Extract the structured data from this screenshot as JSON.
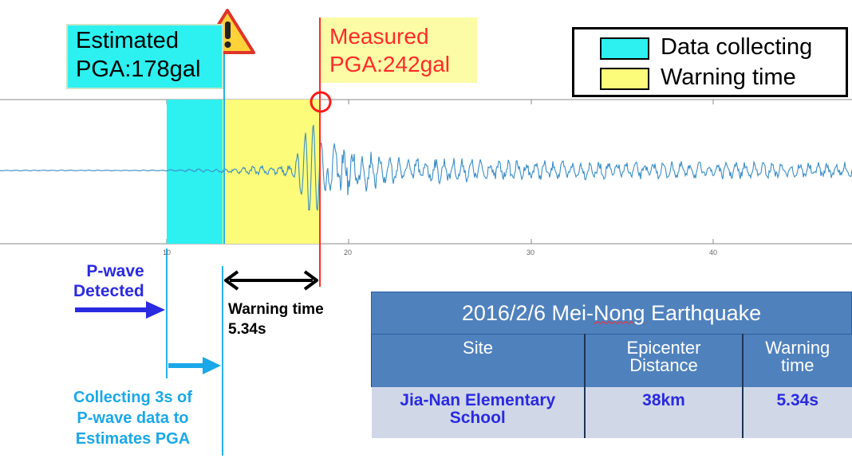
{
  "estimated": {
    "line1": "Estimated",
    "line2": "PGA:178gal"
  },
  "measured": {
    "line1": "Measured",
    "line2": "PGA:242gal"
  },
  "legend": [
    {
      "label": "Data collecting",
      "color": "#2df0f0"
    },
    {
      "label": "Warning time",
      "color": "#fdfc7a"
    }
  ],
  "axis_ticks": [
    "10",
    "20",
    "30",
    "40"
  ],
  "annotations": {
    "pwave_detected": "P-wave\nDetected",
    "warning_time": "Warning time\n5.34s",
    "collecting": "Collecting 3s of\nP-wave data to\nEstimates PGA"
  },
  "table": {
    "title_pre": "2016/2/6 Mei-",
    "title_mark": "Nong",
    "title_post": " Earthquake",
    "headers": [
      "Site",
      "Epicenter\nDistance",
      "Warning\ntime"
    ],
    "row": [
      "Jia-Nan Elementary\nSchool",
      "38km",
      "5.34s"
    ]
  },
  "colors": {
    "data_collecting": "#2df0f0",
    "warning_time": "#fdfc7a",
    "waveform": "#3a8ec8",
    "p_wave_marker": "#2ab0e8",
    "measured_marker": "#ff2a2a"
  }
}
